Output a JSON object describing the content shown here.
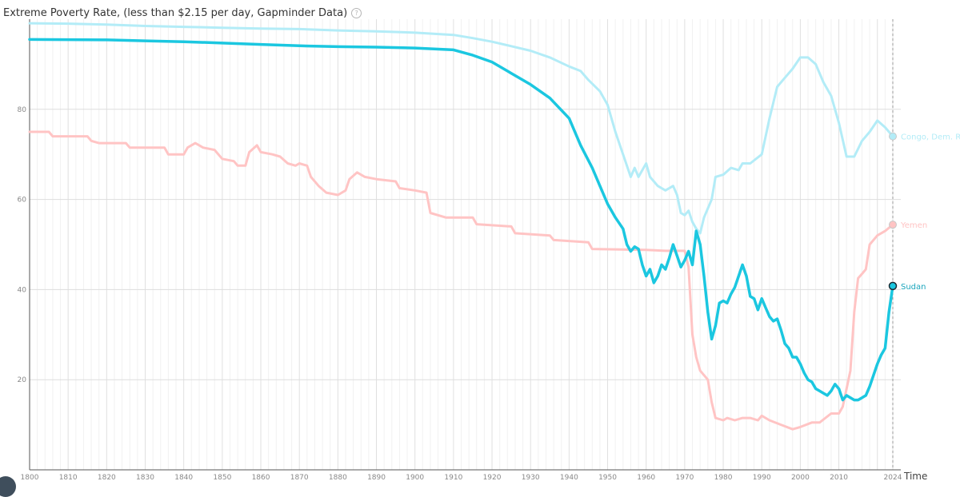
{
  "chart_data": {
    "type": "line",
    "title": "Extreme Poverty Rate, (less than $2.15 per day, Gapminder Data)",
    "xlabel": "Time",
    "ylabel": "",
    "xlim": [
      1800,
      2026
    ],
    "ylim": [
      0,
      100
    ],
    "x_ticks": [
      1800,
      1810,
      1820,
      1830,
      1840,
      1850,
      1860,
      1870,
      1880,
      1890,
      1900,
      1910,
      1920,
      1930,
      1940,
      1950,
      1960,
      1970,
      1980,
      1990,
      2000,
      2010,
      2024
    ],
    "y_ticks": [
      20,
      40,
      60,
      80
    ],
    "grid": true,
    "series": [
      {
        "name": "Congo, Dem. Rep.",
        "label": "Congo, Dem. R",
        "color": "#b3ecf7",
        "values": [
          [
            1800,
            99.1
          ],
          [
            1810,
            99.0
          ],
          [
            1820,
            98.8
          ],
          [
            1830,
            98.5
          ],
          [
            1840,
            98.3
          ],
          [
            1850,
            98.1
          ],
          [
            1860,
            97.9
          ],
          [
            1870,
            97.8
          ],
          [
            1880,
            97.5
          ],
          [
            1890,
            97.3
          ],
          [
            1900,
            97.0
          ],
          [
            1910,
            96.5
          ],
          [
            1915,
            95.8
          ],
          [
            1920,
            95.0
          ],
          [
            1925,
            94.0
          ],
          [
            1930,
            93.0
          ],
          [
            1935,
            91.5
          ],
          [
            1940,
            89.5
          ],
          [
            1943,
            88.5
          ],
          [
            1945,
            86.5
          ],
          [
            1948,
            84.0
          ],
          [
            1950,
            81.0
          ],
          [
            1952,
            75.0
          ],
          [
            1954,
            70.0
          ],
          [
            1956,
            65.0
          ],
          [
            1957,
            67.0
          ],
          [
            1958,
            65.0
          ],
          [
            1960,
            68.0
          ],
          [
            1961,
            65.0
          ],
          [
            1962,
            64.0
          ],
          [
            1963,
            63.0
          ],
          [
            1965,
            62.0
          ],
          [
            1967,
            63.0
          ],
          [
            1968,
            61.0
          ],
          [
            1969,
            57.0
          ],
          [
            1970,
            56.5
          ],
          [
            1971,
            57.5
          ],
          [
            1972,
            55.0
          ],
          [
            1973,
            53.5
          ],
          [
            1974,
            52.5
          ],
          [
            1975,
            56.0
          ],
          [
            1977,
            60.0
          ],
          [
            1978,
            65.0
          ],
          [
            1980,
            65.5
          ],
          [
            1982,
            67.0
          ],
          [
            1984,
            66.5
          ],
          [
            1985,
            68.0
          ],
          [
            1987,
            68.0
          ],
          [
            1990,
            70.0
          ],
          [
            1992,
            78.0
          ],
          [
            1994,
            85.0
          ],
          [
            1996,
            87.0
          ],
          [
            1998,
            89.0
          ],
          [
            2000,
            91.5
          ],
          [
            2002,
            91.5
          ],
          [
            2004,
            90.0
          ],
          [
            2006,
            86.0
          ],
          [
            2008,
            83.0
          ],
          [
            2010,
            77.0
          ],
          [
            2012,
            69.5
          ],
          [
            2014,
            69.5
          ],
          [
            2016,
            73.0
          ],
          [
            2018,
            75.0
          ],
          [
            2020,
            77.5
          ],
          [
            2022,
            76.0
          ],
          [
            2024,
            74.0
          ]
        ]
      },
      {
        "name": "Yemen",
        "label": "Yemen",
        "color": "#ffc4c4",
        "values": [
          [
            1800,
            75.0
          ],
          [
            1805,
            75.0
          ],
          [
            1806,
            74.0
          ],
          [
            1815,
            74.0
          ],
          [
            1816,
            73.0
          ],
          [
            1818,
            72.5
          ],
          [
            1820,
            72.5
          ],
          [
            1825,
            72.5
          ],
          [
            1826,
            71.5
          ],
          [
            1835,
            71.5
          ],
          [
            1836,
            70.0
          ],
          [
            1840,
            70.0
          ],
          [
            1841,
            71.5
          ],
          [
            1843,
            72.5
          ],
          [
            1845,
            71.5
          ],
          [
            1848,
            71.0
          ],
          [
            1850,
            69.0
          ],
          [
            1853,
            68.5
          ],
          [
            1854,
            67.5
          ],
          [
            1856,
            67.5
          ],
          [
            1857,
            70.5
          ],
          [
            1859,
            72.0
          ],
          [
            1860,
            70.5
          ],
          [
            1863,
            70.0
          ],
          [
            1865,
            69.5
          ],
          [
            1867,
            68.0
          ],
          [
            1869,
            67.5
          ],
          [
            1870,
            68.0
          ],
          [
            1872,
            67.5
          ],
          [
            1873,
            65.0
          ],
          [
            1875,
            63.0
          ],
          [
            1877,
            61.5
          ],
          [
            1880,
            61.0
          ],
          [
            1882,
            62.0
          ],
          [
            1883,
            64.5
          ],
          [
            1885,
            66.0
          ],
          [
            1887,
            65.0
          ],
          [
            1890,
            64.5
          ],
          [
            1895,
            64.0
          ],
          [
            1896,
            62.5
          ],
          [
            1900,
            62.0
          ],
          [
            1903,
            61.5
          ],
          [
            1904,
            57.0
          ],
          [
            1908,
            56.0
          ],
          [
            1915,
            56.0
          ],
          [
            1916,
            54.5
          ],
          [
            1925,
            54.0
          ],
          [
            1926,
            52.5
          ],
          [
            1935,
            52.0
          ],
          [
            1936,
            51.0
          ],
          [
            1945,
            50.5
          ],
          [
            1946,
            49.0
          ],
          [
            1960,
            48.8
          ],
          [
            1965,
            48.6
          ],
          [
            1970,
            48.6
          ],
          [
            1971,
            45.0
          ],
          [
            1972,
            30.0
          ],
          [
            1973,
            25.0
          ],
          [
            1974,
            22.0
          ],
          [
            1976,
            20.0
          ],
          [
            1977,
            15.0
          ],
          [
            1978,
            11.5
          ],
          [
            1980,
            11.0
          ],
          [
            1981,
            11.5
          ],
          [
            1983,
            11.0
          ],
          [
            1985,
            11.5
          ],
          [
            1987,
            11.5
          ],
          [
            1989,
            11.0
          ],
          [
            1990,
            12.0
          ],
          [
            1992,
            11.0
          ],
          [
            1995,
            10.0
          ],
          [
            1998,
            9.0
          ],
          [
            2000,
            9.5
          ],
          [
            2003,
            10.5
          ],
          [
            2005,
            10.5
          ],
          [
            2008,
            12.5
          ],
          [
            2010,
            12.5
          ],
          [
            2011,
            14.0
          ],
          [
            2012,
            18.0
          ],
          [
            2013,
            22.0
          ],
          [
            2014,
            35.0
          ],
          [
            2015,
            42.5
          ],
          [
            2016,
            43.5
          ],
          [
            2017,
            44.5
          ],
          [
            2018,
            50.0
          ],
          [
            2020,
            52.0
          ],
          [
            2022,
            53.0
          ],
          [
            2024,
            54.4
          ]
        ]
      },
      {
        "name": "Sudan",
        "label": "Sudan",
        "color": "#1bc7e0",
        "values": [
          [
            1800,
            95.5
          ],
          [
            1820,
            95.4
          ],
          [
            1830,
            95.2
          ],
          [
            1840,
            95.0
          ],
          [
            1850,
            94.7
          ],
          [
            1860,
            94.4
          ],
          [
            1870,
            94.1
          ],
          [
            1880,
            93.9
          ],
          [
            1890,
            93.8
          ],
          [
            1900,
            93.6
          ],
          [
            1910,
            93.2
          ],
          [
            1915,
            92.0
          ],
          [
            1920,
            90.5
          ],
          [
            1925,
            88.0
          ],
          [
            1930,
            85.5
          ],
          [
            1935,
            82.5
          ],
          [
            1940,
            78.0
          ],
          [
            1943,
            72.0
          ],
          [
            1946,
            67.0
          ],
          [
            1948,
            63.0
          ],
          [
            1950,
            59.0
          ],
          [
            1952,
            56.0
          ],
          [
            1954,
            53.5
          ],
          [
            1955,
            50.0
          ],
          [
            1956,
            48.5
          ],
          [
            1957,
            49.5
          ],
          [
            1958,
            49.0
          ],
          [
            1959,
            45.5
          ],
          [
            1960,
            43.0
          ],
          [
            1961,
            44.5
          ],
          [
            1962,
            41.5
          ],
          [
            1963,
            43.0
          ],
          [
            1964,
            45.5
          ],
          [
            1965,
            44.5
          ],
          [
            1966,
            47.0
          ],
          [
            1967,
            50.0
          ],
          [
            1968,
            47.5
          ],
          [
            1969,
            45.0
          ],
          [
            1970,
            46.5
          ],
          [
            1971,
            48.5
          ],
          [
            1972,
            45.5
          ],
          [
            1973,
            53.0
          ],
          [
            1974,
            50.0
          ],
          [
            1975,
            43.0
          ],
          [
            1976,
            35.0
          ],
          [
            1977,
            29.0
          ],
          [
            1978,
            32.0
          ],
          [
            1979,
            37.0
          ],
          [
            1980,
            37.5
          ],
          [
            1981,
            37.0
          ],
          [
            1982,
            39.0
          ],
          [
            1983,
            40.5
          ],
          [
            1984,
            43.0
          ],
          [
            1985,
            45.5
          ],
          [
            1986,
            43.0
          ],
          [
            1987,
            38.5
          ],
          [
            1988,
            38.0
          ],
          [
            1989,
            35.5
          ],
          [
            1990,
            38.0
          ],
          [
            1991,
            36.0
          ],
          [
            1992,
            34.0
          ],
          [
            1993,
            33.0
          ],
          [
            1994,
            33.5
          ],
          [
            1995,
            31.0
          ],
          [
            1996,
            28.0
          ],
          [
            1997,
            27.0
          ],
          [
            1998,
            25.0
          ],
          [
            1999,
            25.0
          ],
          [
            2000,
            23.5
          ],
          [
            2001,
            21.5
          ],
          [
            2002,
            20.0
          ],
          [
            2003,
            19.5
          ],
          [
            2004,
            18.0
          ],
          [
            2005,
            17.5
          ],
          [
            2006,
            17.0
          ],
          [
            2007,
            16.5
          ],
          [
            2008,
            17.5
          ],
          [
            2009,
            19.0
          ],
          [
            2010,
            18.0
          ],
          [
            2011,
            15.5
          ],
          [
            2012,
            16.5
          ],
          [
            2013,
            16.0
          ],
          [
            2014,
            15.5
          ],
          [
            2015,
            15.5
          ],
          [
            2016,
            16.0
          ],
          [
            2017,
            16.5
          ],
          [
            2018,
            18.5
          ],
          [
            2019,
            21.0
          ],
          [
            2020,
            23.5
          ],
          [
            2021,
            25.5
          ],
          [
            2022,
            27.0
          ],
          [
            2023,
            35.0
          ],
          [
            2024,
            40.8
          ]
        ]
      }
    ]
  }
}
